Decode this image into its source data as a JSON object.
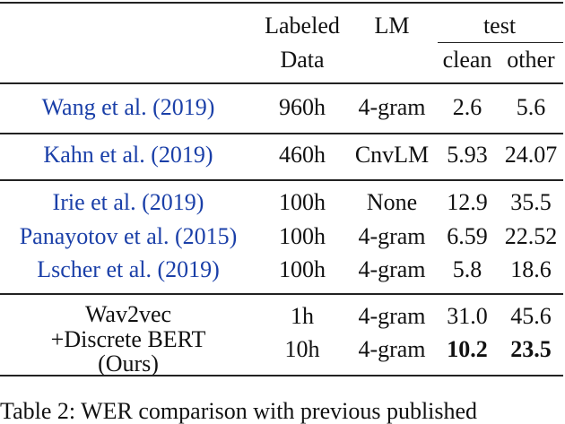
{
  "table": {
    "header": {
      "labeled": "Labeled",
      "data": "Data",
      "lm": "LM",
      "test": "test",
      "clean": "clean",
      "other": "other"
    },
    "rows": [
      [
        "Wang et al. (2019)",
        "960h",
        "4-gram",
        "2.6",
        "5.6"
      ],
      [
        "Kahn et al. (2019)",
        "460h",
        "CnvLM",
        "5.93",
        "24.07"
      ],
      [
        "Irie et al. (2019)",
        "100h",
        "None",
        "12.9",
        "35.5"
      ],
      [
        "Panayotov et al. (2015)",
        "100h",
        "4-gram",
        "6.59",
        "22.52"
      ],
      [
        "Lscher et al. (2019)",
        "100h",
        "4-gram",
        "5.8",
        "18.6"
      ]
    ],
    "ours": {
      "name": [
        "Wav2vec",
        "+Discrete BERT",
        "(Ours)"
      ],
      "rows": [
        [
          "1h",
          "4-gram",
          "31.0",
          "45.6"
        ],
        [
          "10h",
          "4-gram",
          "10.2",
          "23.5"
        ]
      ]
    }
  },
  "caption": "Table 2: WER comparison with previous published"
}
